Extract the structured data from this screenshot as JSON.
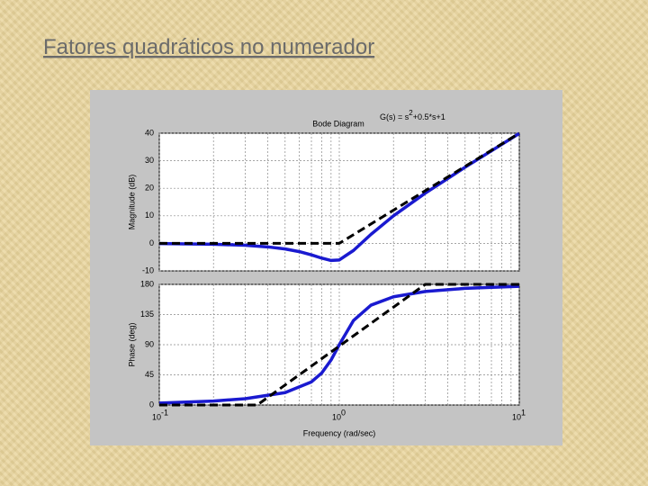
{
  "slide_title": "Fatores quadráticos no numerador",
  "chart_data": [
    {
      "type": "line",
      "title": "Bode Diagram",
      "annotation": [
        "G(s) = s",
        "2",
        "+0.5*s+1"
      ],
      "ylabel": "Magnitude (dB)",
      "xlog": true,
      "xlim": [
        0.1,
        10
      ],
      "ylim": [
        -10,
        40
      ],
      "yticks": [
        -10,
        0,
        10,
        20,
        30,
        40
      ],
      "xticks": [
        {
          "value": 0.1,
          "label": "10",
          "exponent": "-1"
        },
        {
          "value": 1,
          "label": "10",
          "exponent": "0"
        },
        {
          "value": 10,
          "label": "10",
          "exponent": "1"
        }
      ],
      "xminor": [
        0.2,
        0.3,
        0.4,
        0.5,
        0.6,
        0.7,
        0.8,
        0.9,
        2,
        3,
        4,
        5,
        6,
        7,
        8,
        9
      ],
      "show_xtick_labels": false,
      "grid": true,
      "series": [
        {
          "color": "#1a1ad0",
          "dashed": false,
          "x": [
            0.1,
            0.2,
            0.3,
            0.4,
            0.5,
            0.6,
            0.7,
            0.8,
            0.9,
            1,
            1.2,
            1.5,
            2,
            3,
            5,
            10
          ],
          "values": [
            -0.08,
            -0.31,
            -0.7,
            -1.28,
            -2.04,
            -3.01,
            -4.17,
            -5.38,
            -6.22,
            -6.02,
            -2.57,
            3.27,
            10,
            18.21,
            27.65,
            39.92
          ]
        },
        {
          "color": "#000000",
          "dashed": true,
          "x": [
            0.1,
            1,
            10
          ],
          "values": [
            0,
            0,
            40
          ]
        }
      ]
    },
    {
      "type": "line",
      "ylabel": "Phase (deg)",
      "xlabel": "Frequency  (rad/sec)",
      "xlog": true,
      "xlim": [
        0.1,
        10
      ],
      "ylim": [
        0,
        180
      ],
      "yticks": [
        0,
        45,
        90,
        135,
        180
      ],
      "xticks": [
        {
          "value": 0.1,
          "label": "10",
          "exponent": "-1"
        },
        {
          "value": 1,
          "label": "10",
          "exponent": "0"
        },
        {
          "value": 10,
          "label": "10",
          "exponent": "1"
        }
      ],
      "xminor": [
        0.2,
        0.3,
        0.4,
        0.5,
        0.6,
        0.7,
        0.8,
        0.9,
        2,
        3,
        4,
        5,
        6,
        7,
        8,
        9
      ],
      "show_xtick_labels": true,
      "grid": true,
      "series": [
        {
          "color": "#1a1ad0",
          "dashed": false,
          "x": [
            0.1,
            0.2,
            0.3,
            0.5,
            0.7,
            0.8,
            0.9,
            1,
            1.2,
            1.5,
            2,
            3,
            5,
            10
          ],
          "values": [
            2.89,
            5.95,
            9.36,
            18.43,
            34.46,
            48.01,
            67.11,
            90,
            126.25,
            149.04,
            161.57,
            169.38,
            174.05,
            177.11
          ]
        },
        {
          "color": "#000000",
          "dashed": true,
          "x": [
            0.1,
            0.35,
            3,
            10
          ],
          "values": [
            0,
            0,
            180,
            180
          ]
        }
      ]
    }
  ]
}
